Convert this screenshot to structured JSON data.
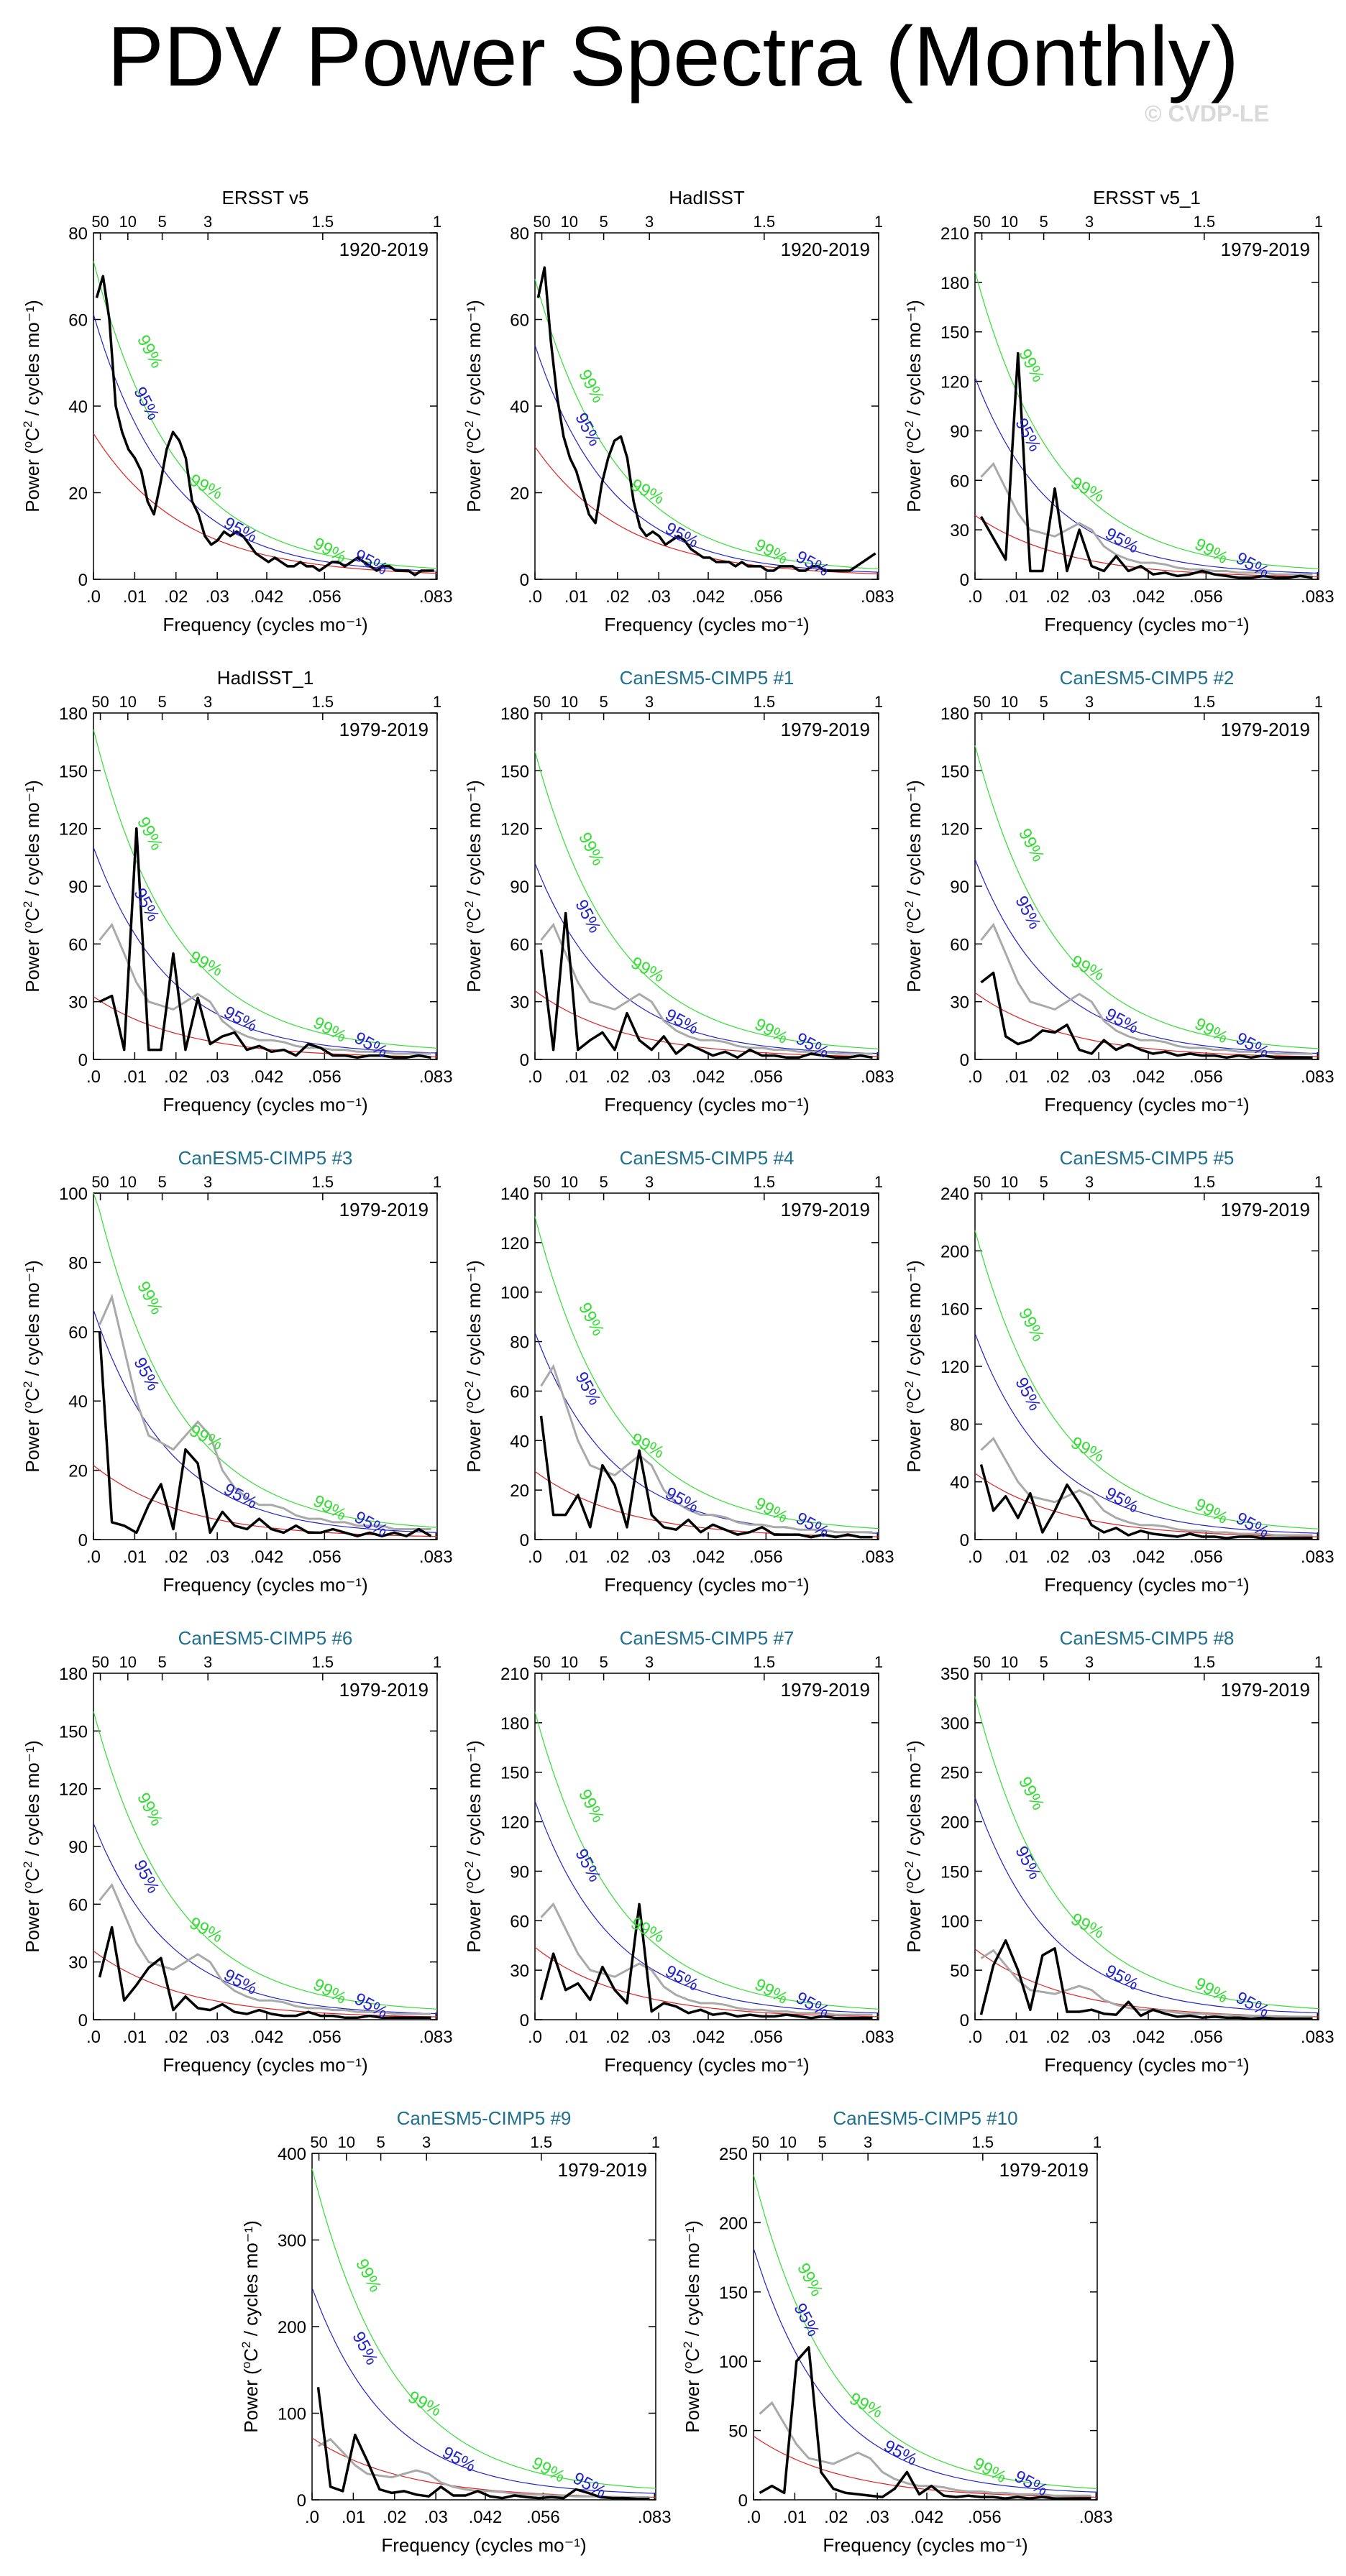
{
  "title": "PDV Power Spectra (Monthly)",
  "copyright": "© CVDP-LE",
  "colors": {
    "obs_title": "#000000",
    "model_title": "#1f6f8f",
    "sig99": "#33dd33",
    "sig95": "#2222cc",
    "red_noise": "#dd2222",
    "spectrum": "#000000",
    "reference": "#a9a9a9"
  },
  "shared": {
    "xlabel": "Frequency (cycles mo⁻¹)",
    "ylabel_prefix": "Power (",
    "ylabel_deg": "o",
    "ylabel_c": "C",
    "ylabel_sq": "2",
    "ylabel_suffix": " / cycles mo⁻¹)",
    "x_ticks": [
      ".0",
      ".01",
      ".02",
      ".03",
      ".042",
      ".056",
      ".083"
    ],
    "top_ticks": [
      "50",
      "10",
      "5",
      "3",
      "1.5",
      "1"
    ],
    "label99": "99%",
    "label95": "95%"
  },
  "chart_data": [
    {
      "type": "line",
      "title": "ERSST v5",
      "title_kind": "obs",
      "period": "1920-2019",
      "ylim": [
        0,
        80
      ],
      "yticks": [
        "0",
        "20",
        "40",
        "60",
        "80"
      ],
      "spectrum": [
        65,
        70,
        60,
        40,
        34,
        30,
        28,
        25,
        18,
        15,
        22,
        30,
        34,
        32,
        28,
        18,
        15,
        10,
        8,
        9,
        11,
        10,
        11,
        10,
        8,
        6,
        5,
        4,
        5,
        4,
        3,
        3,
        4,
        3,
        3,
        2,
        3,
        4,
        4,
        3,
        4,
        5,
        4,
        3,
        2,
        3,
        3,
        2,
        2,
        2,
        1,
        2,
        2,
        2
      ],
      "p99_start": 72,
      "p95_start": 60,
      "red_start": 33,
      "p99_label_y": 52,
      "p95_label_y": 40
    },
    {
      "type": "line",
      "title": "HadISST",
      "title_kind": "obs",
      "period": "1920-2019",
      "ylim": [
        0,
        80
      ],
      "yticks": [
        "0",
        "20",
        "40",
        "60",
        "80"
      ],
      "spectrum": [
        65,
        72,
        55,
        42,
        33,
        28,
        25,
        20,
        15,
        13,
        22,
        28,
        32,
        33,
        28,
        18,
        12,
        10,
        11,
        10,
        8,
        9,
        10,
        9,
        7,
        6,
        5,
        5,
        4,
        4,
        4,
        3,
        4,
        3,
        3,
        3,
        2,
        2,
        3,
        3,
        3,
        2,
        2,
        3,
        3,
        2,
        2,
        2,
        2,
        2,
        3,
        4,
        5,
        6
      ],
      "p99_start": 68,
      "p95_start": 53,
      "red_start": 30,
      "p99_label_y": 44,
      "p95_label_y": 34
    },
    {
      "type": "line",
      "title": "ERSST v5_1",
      "title_kind": "obs",
      "period": "1979-2019",
      "ylim": [
        0,
        210
      ],
      "yticks": [
        "0",
        "30",
        "60",
        "90",
        "120",
        "150",
        "180",
        "210"
      ],
      "spectrum": [
        38,
        25,
        12,
        137,
        5,
        5,
        55,
        5,
        30,
        8,
        5,
        14,
        5,
        8,
        3,
        4,
        2,
        3,
        5,
        3,
        2,
        1,
        1,
        2,
        1,
        1,
        2,
        1
      ],
      "ref": true,
      "p99_start": 183,
      "p95_start": 120,
      "red_start": 38,
      "p99_label_y": 128,
      "p95_label_y": 86
    },
    {
      "type": "line",
      "title": "HadISST_1",
      "title_kind": "obs",
      "period": "1979-2019",
      "ylim": [
        0,
        180
      ],
      "yticks": [
        "0",
        "30",
        "60",
        "90",
        "120",
        "150",
        "180"
      ],
      "spectrum": [
        30,
        33,
        5,
        120,
        5,
        5,
        55,
        5,
        32,
        8,
        12,
        14,
        5,
        7,
        4,
        5,
        2,
        8,
        6,
        2,
        2,
        1,
        2,
        2,
        1,
        1,
        2,
        1
      ],
      "ref": true,
      "p99_start": 168,
      "p95_start": 108,
      "red_start": 32,
      "p99_label_y": 116,
      "p95_label_y": 79
    },
    {
      "type": "line",
      "title": "CanESM5-CIMP5 #1",
      "title_kind": "model",
      "period": "1979-2019",
      "ylim": [
        0,
        180
      ],
      "yticks": [
        "0",
        "30",
        "60",
        "90",
        "120",
        "150",
        "180"
      ],
      "spectrum": [
        57,
        5,
        76,
        5,
        10,
        14,
        5,
        24,
        10,
        5,
        12,
        3,
        8,
        5,
        2,
        4,
        1,
        5,
        2,
        2,
        1,
        1,
        3,
        2,
        1,
        1,
        2,
        1
      ],
      "ref": true,
      "p99_start": 157,
      "p95_start": 100,
      "red_start": 35,
      "p99_label_y": 108,
      "p95_label_y": 73
    },
    {
      "type": "line",
      "title": "CanESM5-CIMP5 #2",
      "title_kind": "model",
      "period": "1979-2019",
      "ylim": [
        0,
        180
      ],
      "yticks": [
        "0",
        "30",
        "60",
        "90",
        "120",
        "150",
        "180"
      ],
      "spectrum": [
        40,
        45,
        12,
        8,
        10,
        15,
        14,
        18,
        5,
        3,
        10,
        5,
        8,
        5,
        3,
        4,
        2,
        3,
        2,
        2,
        1,
        2,
        1,
        2,
        1,
        1,
        1,
        1
      ],
      "ref": true,
      "p99_start": 160,
      "p95_start": 102,
      "red_start": 34,
      "p99_label_y": 110,
      "p95_label_y": 75
    },
    {
      "type": "line",
      "title": "CanESM5-CIMP5 #3",
      "title_kind": "model",
      "period": "1979-2019",
      "ylim": [
        0,
        100
      ],
      "yticks": [
        "0",
        "20",
        "40",
        "60",
        "80",
        "100"
      ],
      "spectrum": [
        60,
        5,
        4,
        2,
        10,
        16,
        3,
        26,
        22,
        2,
        8,
        4,
        3,
        6,
        3,
        2,
        4,
        2,
        2,
        3,
        2,
        1,
        2,
        1,
        2,
        1,
        3,
        1
      ],
      "ref": true,
      "p99_start": 100,
      "p95_start": 65,
      "red_start": 21,
      "p99_label_y": 69,
      "p95_label_y": 47
    },
    {
      "type": "line",
      "title": "CanESM5-CIMP5 #4",
      "title_kind": "model",
      "period": "1979-2019",
      "ylim": [
        0,
        140
      ],
      "yticks": [
        "0",
        "20",
        "40",
        "60",
        "80",
        "100",
        "120",
        "140"
      ],
      "spectrum": [
        50,
        10,
        10,
        18,
        5,
        30,
        22,
        5,
        36,
        10,
        5,
        4,
        8,
        3,
        6,
        4,
        2,
        3,
        5,
        2,
        2,
        2,
        1,
        2,
        1,
        2,
        1,
        1
      ],
      "ref": true,
      "p99_start": 128,
      "p95_start": 82,
      "red_start": 27,
      "p99_label_y": 88,
      "p95_label_y": 60
    },
    {
      "type": "line",
      "title": "CanESM5-CIMP5 #5",
      "title_kind": "model",
      "period": "1979-2019",
      "ylim": [
        0,
        240
      ],
      "yticks": [
        "0",
        "40",
        "80",
        "120",
        "160",
        "200",
        "240"
      ],
      "spectrum": [
        52,
        20,
        30,
        15,
        32,
        5,
        20,
        38,
        25,
        10,
        5,
        8,
        3,
        6,
        4,
        3,
        2,
        4,
        2,
        2,
        1,
        2,
        2,
        1,
        1,
        1,
        1,
        1
      ],
      "ref": true,
      "p99_start": 210,
      "p95_start": 140,
      "red_start": 45,
      "p99_label_y": 147,
      "p95_label_y": 99
    },
    {
      "type": "line",
      "title": "CanESM5-CIMP5 #6",
      "title_kind": "model",
      "period": "1979-2019",
      "ylim": [
        0,
        180
      ],
      "yticks": [
        "0",
        "30",
        "60",
        "90",
        "120",
        "150",
        "180"
      ],
      "spectrum": [
        22,
        48,
        10,
        18,
        27,
        32,
        5,
        12,
        6,
        5,
        8,
        4,
        3,
        5,
        3,
        2,
        2,
        4,
        2,
        2,
        1,
        1,
        2,
        1,
        1,
        1,
        1,
        1
      ],
      "ref": true,
      "p99_start": 157,
      "p95_start": 100,
      "red_start": 35,
      "p99_label_y": 108,
      "p95_label_y": 73
    },
    {
      "type": "line",
      "title": "CanESM5-CIMP5 #7",
      "title_kind": "model",
      "period": "1979-2019",
      "ylim": [
        0,
        210
      ],
      "yticks": [
        "0",
        "30",
        "60",
        "90",
        "120",
        "150",
        "180",
        "210"
      ],
      "spectrum": [
        12,
        40,
        18,
        22,
        12,
        32,
        18,
        10,
        70,
        5,
        10,
        8,
        4,
        6,
        3,
        4,
        2,
        3,
        2,
        2,
        3,
        2,
        1,
        2,
        1,
        1,
        1,
        1
      ],
      "ref": true,
      "p99_start": 183,
      "p95_start": 130,
      "red_start": 43,
      "p99_label_y": 128,
      "p95_label_y": 92
    },
    {
      "type": "line",
      "title": "CanESM5-CIMP5 #8",
      "title_kind": "model",
      "period": "1979-2019",
      "ylim": [
        0,
        350
      ],
      "yticks": [
        "0",
        "50",
        "100",
        "150",
        "200",
        "250",
        "300",
        "350"
      ],
      "spectrum": [
        5,
        55,
        80,
        50,
        10,
        65,
        72,
        8,
        8,
        10,
        6,
        5,
        18,
        4,
        10,
        6,
        3,
        4,
        2,
        3,
        2,
        2,
        1,
        2,
        1,
        1,
        1,
        1
      ],
      "ref": true,
      "p99_start": 320,
      "p95_start": 220,
      "red_start": 70,
      "p99_label_y": 226,
      "p95_label_y": 156
    },
    {
      "type": "line",
      "title": "CanESM5-CIMP5 #9",
      "title_kind": "model",
      "period": "1979-2019",
      "ylim": [
        0,
        400
      ],
      "yticks": [
        "0",
        "100",
        "200",
        "300",
        "400"
      ],
      "spectrum": [
        130,
        15,
        10,
        75,
        45,
        12,
        8,
        10,
        6,
        4,
        15,
        5,
        5,
        10,
        4,
        2,
        5,
        3,
        2,
        3,
        2,
        12,
        8,
        3,
        2,
        2,
        1,
        1
      ],
      "ref": true,
      "p99_start": 375,
      "p95_start": 240,
      "red_start": 70,
      "p99_label_y": 256,
      "p95_label_y": 172
    },
    {
      "type": "line",
      "title": "CanESM5-CIMP5 #10",
      "title_kind": "model",
      "period": "1979-2019",
      "ylim": [
        0,
        250
      ],
      "yticks": [
        "0",
        "50",
        "100",
        "150",
        "200",
        "250"
      ],
      "spectrum": [
        5,
        10,
        5,
        100,
        110,
        20,
        8,
        5,
        4,
        3,
        2,
        8,
        20,
        4,
        10,
        3,
        2,
        3,
        2,
        2,
        1,
        2,
        1,
        2,
        1,
        1,
        1,
        1
      ],
      "ref": true,
      "p99_start": 230,
      "p95_start": 178,
      "red_start": 45,
      "p99_label_y": 157,
      "p95_label_y": 128
    }
  ]
}
